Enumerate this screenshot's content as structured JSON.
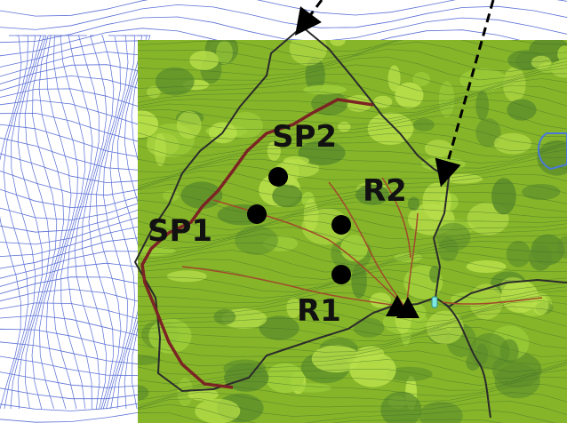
{
  "map": {
    "colors": {
      "background": "#ffffff",
      "contour_outside": "#5a6fd6",
      "vegetation_base": "#86b52a",
      "vegetation_light": "#b9e04a",
      "vegetation_dark": "#5e8f2a",
      "contour_inside": "#3c6a2a",
      "boundary": "#2b2b2b",
      "ridge_road": "#7b2424",
      "stream": "#a04a2a",
      "marker": "#000000",
      "water": "#4a78d8"
    },
    "labels": {
      "sp1": "SP1",
      "sp2": "SP2",
      "r1": "R1",
      "r2": "R2"
    },
    "icons": {
      "sampling_point": "filled-circle",
      "outlet": "triangle-pair",
      "arrow": "dashed-arrow"
    }
  }
}
